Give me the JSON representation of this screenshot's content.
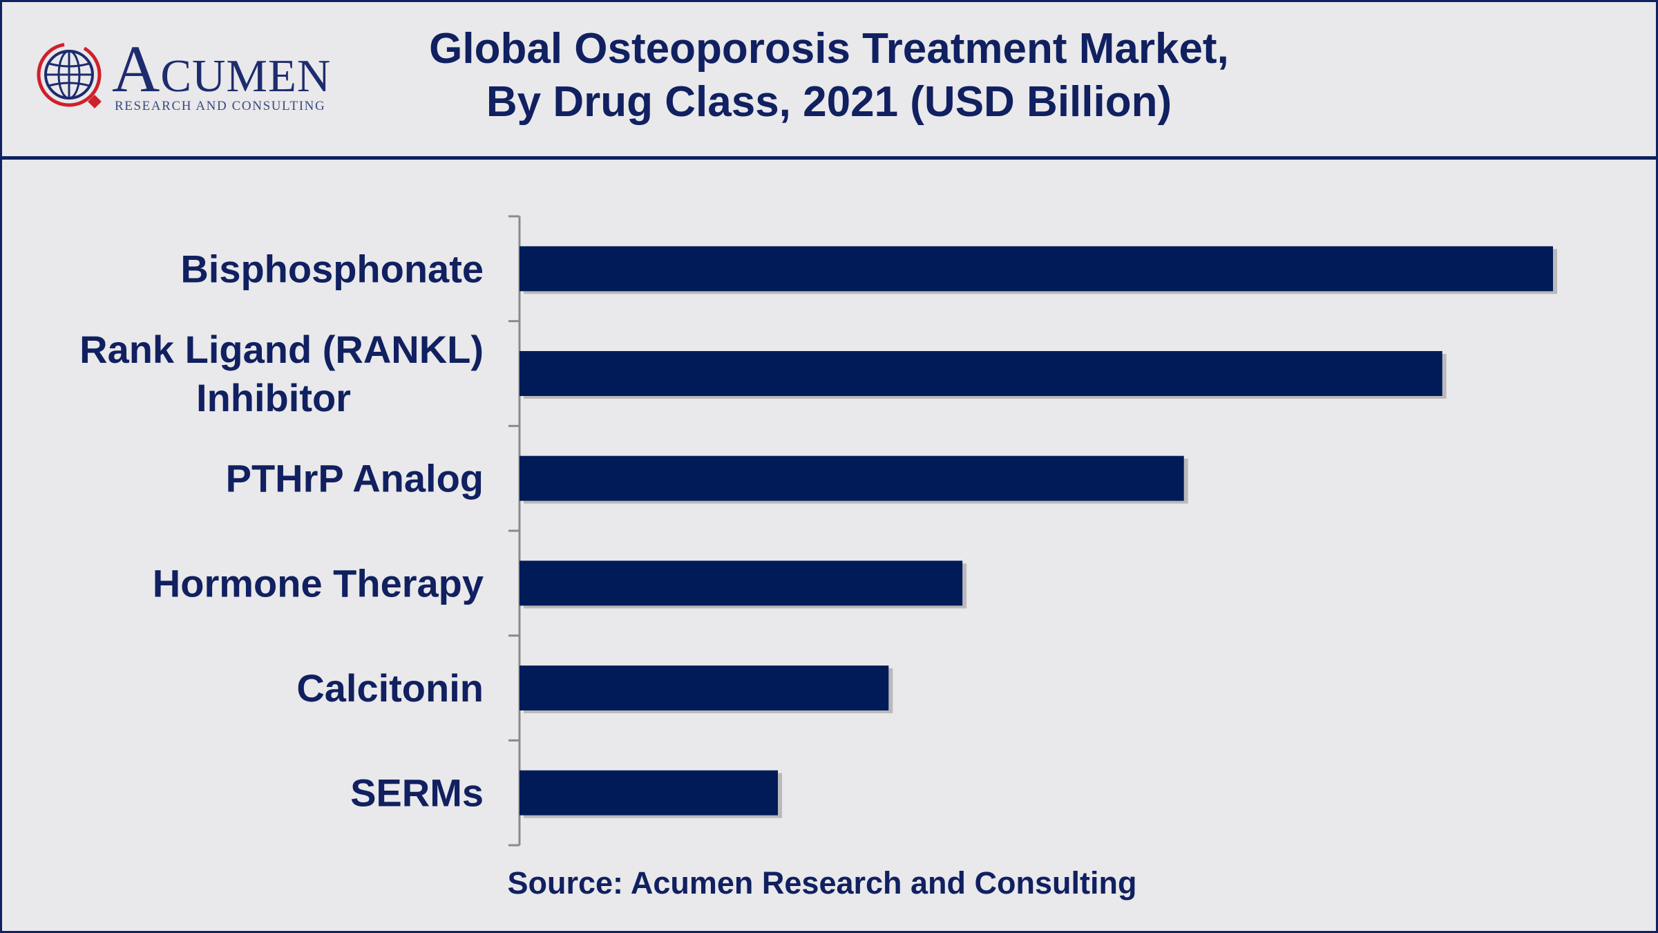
{
  "logo": {
    "name": "Acumen",
    "tagline": "RESEARCH AND CONSULTING"
  },
  "colors": {
    "bar": "#001b57",
    "text": "#102060",
    "logo_accent": "#d0202a"
  },
  "chart_data": {
    "type": "bar",
    "orientation": "horizontal",
    "title_lines": [
      "Global Osteoporosis Treatment Market,",
      "By Drug Class, 2021 (USD Billion)"
    ],
    "categories": [
      [
        "Bisphosphonate"
      ],
      [
        "Rank Ligand (RANKL)",
        "Inhibitor"
      ],
      [
        "PTHrP Analog"
      ],
      [
        "Hormone Therapy"
      ],
      [
        "Calcitonin"
      ],
      [
        "SERMs"
      ]
    ],
    "values": [
      5.6,
      5.0,
      3.6,
      2.4,
      2.0,
      1.4
    ],
    "grid": false,
    "legend": "none"
  },
  "source": "Source: Acumen Research and Consulting"
}
